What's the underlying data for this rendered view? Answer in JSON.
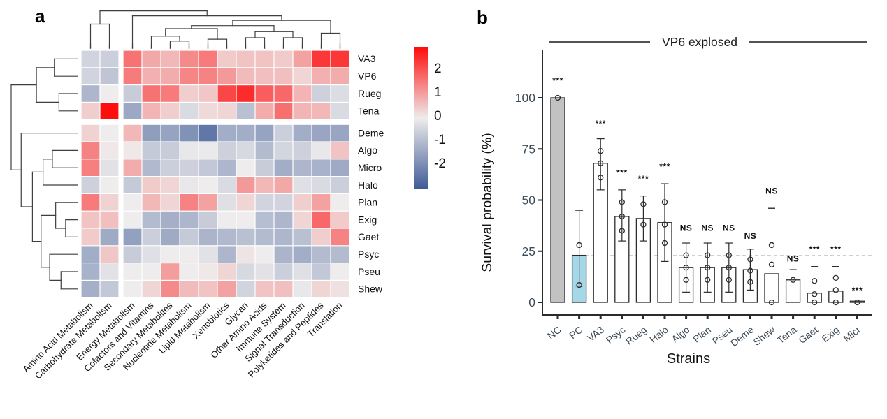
{
  "figure": {
    "panel_a_label": "a",
    "panel_b_label": "b"
  },
  "chart_data": [
    {
      "type": "heatmap",
      "panel": "a",
      "rows": [
        "VA3",
        "VP6",
        "Rueg",
        "Tena",
        "Deme",
        "Algo",
        "Micro",
        "Halo",
        "Plan",
        "Exig",
        "Gaet",
        "Psyc",
        "Pseu",
        "Shew"
      ],
      "columns": [
        "Amino Acid Metabolism",
        "Carbohydrate Metabolism",
        "Energy Metabolism",
        "Cofactors and Vitamins",
        "Secondary Metabolites",
        "Nucleotide Metabolism",
        "Lipid Metabolism",
        "Xenobiotics",
        "Glycan",
        "Other Amino Acids",
        "Immune System",
        "Signal Transduction",
        "Polyketides and Peptides",
        "Translation"
      ],
      "values": [
        [
          -0.5,
          -0.6,
          1.6,
          0.9,
          0.7,
          1.3,
          1.5,
          0.45,
          0.55,
          0.55,
          0.45,
          1.0,
          2.4,
          2.4
        ],
        [
          -0.5,
          -0.8,
          1.5,
          0.8,
          0.85,
          1.35,
          1.4,
          1.1,
          0.65,
          0.6,
          0.6,
          0.3,
          0.8,
          0.85
        ],
        [
          -1.1,
          0.0,
          -0.65,
          1.6,
          1.5,
          0.4,
          0.5,
          2.2,
          2.55,
          1.9,
          1.75,
          0.75,
          -0.55,
          -0.3
        ],
        [
          0.4,
          2.95,
          -1.4,
          0.75,
          0.4,
          -0.35,
          0.25,
          0.3,
          -0.9,
          0.85,
          1.65,
          0.75,
          0.7,
          -0.35
        ],
        [
          0.35,
          0.0,
          0.7,
          -1.6,
          -1.5,
          -1.85,
          -2.4,
          -1.3,
          -1.3,
          -1.5,
          -0.6,
          -1.3,
          -1.45,
          -1.45
        ],
        [
          1.4,
          0.05,
          0.05,
          -0.7,
          -0.65,
          -0.1,
          -0.05,
          -0.55,
          -0.4,
          -1.0,
          -0.45,
          -0.55,
          -0.1,
          0.55
        ],
        [
          1.45,
          -0.2,
          0.85,
          -1.05,
          -0.6,
          -0.55,
          -0.75,
          -1.1,
          0.0,
          -0.65,
          -1.3,
          -1.1,
          -1.2,
          -1.35
        ],
        [
          -0.55,
          0.0,
          -0.7,
          0.45,
          0.3,
          -0.1,
          0.0,
          -0.35,
          1.1,
          0.7,
          0.9,
          -0.25,
          -0.35,
          -0.6
        ],
        [
          1.5,
          0.35,
          0.0,
          0.7,
          0.3,
          1.4,
          1.0,
          -0.25,
          0.3,
          -0.5,
          -0.5,
          0.4,
          1.0,
          0.0
        ],
        [
          0.55,
          0.6,
          0.0,
          -1.0,
          -1.25,
          -1.1,
          -0.65,
          0.0,
          0.0,
          -0.95,
          -1.1,
          0.3,
          1.75,
          0.45
        ],
        [
          0.45,
          -1.35,
          -1.55,
          -0.6,
          -1.35,
          -0.7,
          -1.15,
          -1.05,
          -0.9,
          -1.0,
          -1.1,
          -0.9,
          0.4,
          1.4
        ],
        [
          -1.3,
          0.5,
          -0.65,
          -0.25,
          0.0,
          0.0,
          -0.2,
          -1.1,
          0.1,
          0.0,
          -1.15,
          -1.3,
          -1.0,
          -1.0
        ],
        [
          -1.2,
          -0.2,
          0.0,
          0.0,
          1.05,
          0.0,
          0.05,
          0.3,
          -0.4,
          -0.2,
          -0.6,
          -0.25,
          -0.75,
          0.0
        ],
        [
          -1.25,
          -0.75,
          0.0,
          0.3,
          1.3,
          0.65,
          0.55,
          1.0,
          -0.5,
          0.55,
          0.6,
          -0.1,
          0.3,
          0.15
        ]
      ],
      "color_scale": {
        "low": "#3e5a96",
        "mid": "#eeecec",
        "high": "#ff0a0a",
        "domain": [
          -3,
          3
        ]
      },
      "colorbar_ticks": [
        "2",
        "1",
        "0",
        "-1",
        "-2"
      ],
      "colorbar_tick_values": [
        2,
        1,
        0,
        -1,
        -2
      ],
      "row_gap_after_index": 3,
      "col_gap_after_index": 1,
      "col_dendrogram": [
        0.97,
        [
          0.62,
          0,
          1
        ],
        [
          0.84,
          2,
          [
            0.72,
            [
              0.58,
              [
                0.5,
                [
                  0.3,
                  3,
                  [
                    0.17,
                    4,
                    5
                  ]
                ],
                [
                  0.22,
                  6,
                  7
                ]
              ],
              [
                0.42,
                [
                  0.26,
                  8,
                  9
                ],
                [
                  0.26,
                  10,
                  11
                ]
              ]
            ],
            [
              0.38,
              12,
              13
            ]
          ]
        ]
      ],
      "row_dendrogram": [
        1.0,
        [
          0.62,
          [
            0.35,
            0,
            1
          ],
          [
            0.28,
            2,
            3
          ]
        ],
        [
          0.85,
          4,
          [
            0.68,
            [
              0.52,
              [
                0.38,
                5,
                6
              ],
              7
            ],
            [
              0.55,
              [
                0.33,
                8,
                [
                  0.18,
                  9,
                  10
                ]
              ],
              [
                0.42,
                11,
                [
                  0.25,
                  12,
                  13
                ]
              ]
            ]
          ]
        ]
      ]
    },
    {
      "type": "bar",
      "panel": "b",
      "title": "VP6 explosed",
      "xlabel": "Strains",
      "ylabel": "Survival probability (%)",
      "yticks": [
        0,
        25,
        50,
        75,
        100
      ],
      "ylim": [
        0,
        123
      ],
      "grid": false,
      "reference_line_y": 23,
      "categories": [
        "NC",
        "PC",
        "VA3",
        "Psyc",
        "Rueg",
        "Halo",
        "Algo",
        "Plan",
        "Pseu",
        "Deme",
        "Shew",
        "Tena",
        "Gaet",
        "Exig",
        "Micr"
      ],
      "values": [
        100,
        23,
        68,
        42,
        41,
        39,
        17,
        17,
        17,
        16,
        14,
        11,
        4.5,
        5.5,
        0.6
      ],
      "bar_colors": [
        "#c2c2c2",
        "#a6d7e7",
        "#ffffff",
        "#ffffff",
        "#ffffff",
        "#ffffff",
        "#ffffff",
        "#ffffff",
        "#ffffff",
        "#ffffff",
        "#ffffff",
        "#ffffff",
        "#ffffff",
        "#ffffff",
        "#ffffff"
      ],
      "whiskers": [
        null,
        [
          8,
          45
        ],
        [
          55,
          80
        ],
        [
          30,
          55
        ],
        [
          30,
          52
        ],
        [
          20,
          58
        ],
        [
          5,
          29
        ],
        [
          5,
          29
        ],
        [
          5,
          29
        ],
        [
          6,
          26
        ],
        null,
        null,
        null,
        null,
        null
      ],
      "points": [
        [
          100
        ],
        [
          28,
          8.5
        ],
        [
          74,
          68,
          61
        ],
        [
          49,
          42,
          35
        ],
        [
          48,
          38
        ],
        [
          49,
          38,
          29
        ],
        [
          23,
          17,
          11
        ],
        [
          23,
          17,
          11
        ],
        [
          23,
          17,
          11
        ],
        [
          21,
          15.5,
          10
        ],
        [
          28,
          18.5,
          0
        ],
        [
          11
        ],
        [
          10.5,
          4,
          0
        ],
        [
          12,
          6,
          0
        ],
        [
          0
        ]
      ],
      "significance": [
        {
          "label": "***",
          "y": 107
        },
        null,
        {
          "label": "***",
          "y": 86
        },
        {
          "label": "***",
          "y": 62
        },
        {
          "label": "***",
          "y": 59
        },
        {
          "label": "***",
          "y": 65
        },
        {
          "label": "NS",
          "y": 35
        },
        {
          "label": "NS",
          "y": 35
        },
        {
          "label": "NS",
          "y": 35
        },
        {
          "label": "NS",
          "y": 31
        },
        {
          "label": "NS",
          "y": 53,
          "dash": 46
        },
        {
          "label": "NS",
          "y": 20,
          "dash": 16
        },
        {
          "label": "***",
          "y": 24.5,
          "dash": 17.5
        },
        {
          "label": "***",
          "y": 24.5,
          "dash": 17.5
        },
        {
          "label": "***",
          "y": 4.5
        }
      ]
    }
  ]
}
